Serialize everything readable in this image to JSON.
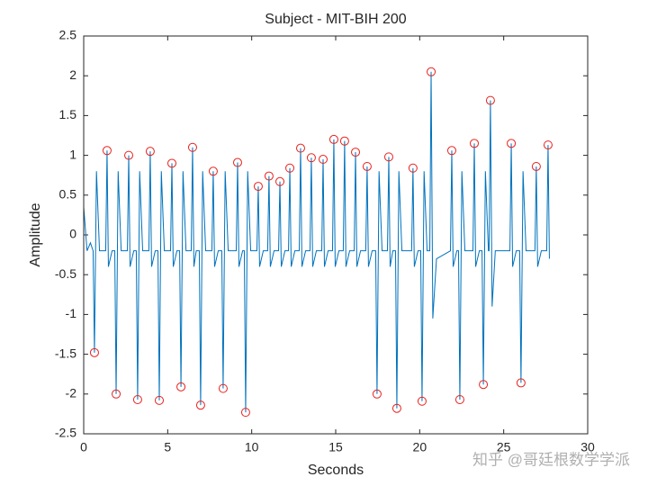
{
  "chart_data": {
    "type": "line",
    "title": "Subject - MIT-BIH 200",
    "xlabel": "Seconds",
    "ylabel": "Amplitude",
    "xlim": [
      0,
      30
    ],
    "xticks": [
      0,
      5,
      10,
      15,
      20,
      25,
      30
    ],
    "ylim": [
      -2.5,
      2.5
    ],
    "yticks": [
      -2.5,
      -2,
      -1.5,
      -1,
      -0.5,
      0,
      0.5,
      1,
      1.5,
      2,
      2.5
    ],
    "grid": false,
    "watermark": "知乎 @哥廷根数学学派",
    "series": [
      {
        "kind": "line",
        "color": "#0072bd",
        "x": [
          0,
          0.2,
          0.4,
          0.56,
          0.64,
          0.76,
          0.94,
          1.31,
          1.39,
          1.47,
          1.69,
          1.85,
          1.93,
          2.05,
          2.23,
          2.6,
          2.68,
          2.76,
          2.98,
          3.13,
          3.21,
          3.33,
          3.51,
          3.88,
          3.96,
          4.04,
          4.26,
          4.42,
          4.5,
          4.62,
          4.8,
          5.17,
          5.25,
          5.33,
          5.55,
          5.71,
          5.79,
          5.91,
          6.09,
          6.4,
          6.48,
          6.56,
          6.7,
          6.88,
          6.96,
          7.08,
          7.26,
          7.63,
          7.71,
          7.79,
          8.01,
          8.22,
          8.3,
          8.42,
          8.6,
          9.08,
          9.16,
          9.24,
          9.46,
          9.56,
          9.64,
          9.76,
          9.94,
          10.31,
          10.39,
          10.47,
          10.69,
          10.95,
          11.03,
          11.11,
          11.33,
          11.6,
          11.68,
          11.76,
          11.98,
          12.19,
          12.27,
          12.35,
          12.57,
          12.83,
          12.91,
          12.99,
          13.21,
          13.47,
          13.55,
          13.63,
          13.85,
          14.17,
          14.25,
          14.33,
          14.55,
          14.81,
          14.89,
          14.97,
          15.19,
          15.45,
          15.53,
          15.61,
          15.83,
          16.1,
          16.18,
          16.26,
          16.48,
          16.79,
          16.87,
          16.95,
          17.17,
          17.38,
          17.46,
          17.58,
          17.76,
          18.08,
          18.16,
          18.24,
          18.4,
          18.56,
          18.64,
          18.76,
          18.94,
          19.52,
          19.6,
          19.68,
          19.9,
          20.06,
          20.14,
          20.26,
          20.44,
          20.6,
          20.68,
          20.78,
          21.0,
          21.83,
          21.91,
          21.99,
          22.21,
          22.31,
          22.39,
          22.51,
          22.69,
          23.17,
          23.25,
          23.33,
          23.55,
          23.71,
          23.79,
          23.91,
          24.09,
          24.13,
          24.21,
          24.31,
          24.5,
          25.37,
          25.45,
          25.53,
          25.75,
          25.95,
          26.03,
          26.15,
          26.33,
          26.86,
          26.94,
          27.02,
          27.24,
          27.56,
          27.64,
          27.72
        ],
        "values": [
          0.35,
          -0.2,
          -0.1,
          -0.2,
          -1.48,
          0.8,
          -0.2,
          -0.2,
          1.06,
          -0.4,
          -0.2,
          -0.2,
          -2.0,
          0.8,
          -0.2,
          -0.2,
          1.0,
          -0.4,
          -0.2,
          -0.2,
          -2.07,
          0.8,
          -0.2,
          -0.2,
          1.05,
          -0.4,
          -0.2,
          -0.2,
          -2.08,
          0.8,
          -0.2,
          -0.2,
          0.9,
          -0.4,
          -0.2,
          -0.2,
          -1.91,
          0.8,
          -0.2,
          -0.2,
          1.1,
          -0.4,
          -0.2,
          -0.2,
          -2.14,
          0.8,
          -0.2,
          -0.2,
          0.8,
          -0.4,
          -0.2,
          -0.2,
          -1.93,
          0.8,
          -0.2,
          -0.2,
          0.91,
          -0.4,
          -0.2,
          -0.2,
          -2.23,
          0.8,
          -0.2,
          -0.2,
          0.61,
          -0.4,
          -0.2,
          -0.2,
          0.74,
          -0.4,
          -0.2,
          -0.2,
          0.67,
          -0.4,
          -0.2,
          -0.2,
          0.84,
          -0.4,
          -0.2,
          -0.2,
          1.09,
          -0.4,
          -0.2,
          -0.2,
          0.97,
          -0.4,
          -0.2,
          -0.2,
          0.95,
          -0.4,
          -0.2,
          -0.2,
          1.2,
          -0.4,
          -0.2,
          -0.2,
          1.18,
          -0.4,
          -0.2,
          -0.2,
          1.04,
          -0.4,
          -0.2,
          -0.2,
          0.86,
          -0.4,
          -0.2,
          -0.2,
          -2.0,
          0.8,
          -0.2,
          -0.2,
          0.98,
          -0.4,
          -0.2,
          -0.2,
          -2.18,
          0.8,
          -0.2,
          -0.2,
          0.84,
          -0.4,
          -0.2,
          -0.2,
          -2.09,
          0.8,
          -0.2,
          -0.2,
          2.05,
          -1.05,
          -0.3,
          -0.2,
          1.06,
          -0.4,
          -0.2,
          -0.2,
          -2.07,
          0.8,
          -0.2,
          -0.2,
          1.15,
          -0.4,
          -0.2,
          -0.2,
          -1.88,
          0.8,
          -0.2,
          -0.2,
          1.69,
          -0.9,
          -0.2,
          -0.2,
          1.15,
          -0.4,
          -0.2,
          -0.2,
          -1.86,
          0.8,
          -0.2,
          -0.2,
          0.86,
          -0.4,
          -0.2,
          -0.2,
          1.13,
          -0.3
        ]
      },
      {
        "kind": "scatter",
        "color": "#e8201c",
        "x": [
          0.64,
          1.39,
          1.93,
          2.68,
          3.21,
          3.96,
          4.5,
          5.25,
          5.79,
          6.48,
          6.96,
          7.71,
          8.3,
          9.16,
          9.64,
          10.39,
          11.03,
          11.68,
          12.27,
          12.91,
          13.55,
          14.25,
          14.89,
          15.53,
          16.18,
          16.87,
          17.46,
          18.16,
          18.64,
          19.6,
          20.14,
          20.68,
          21.91,
          22.39,
          23.25,
          23.79,
          24.21,
          25.45,
          26.03,
          26.94,
          27.64
        ],
        "values": [
          -1.48,
          1.06,
          -2.0,
          1.0,
          -2.07,
          1.05,
          -2.08,
          0.9,
          -1.91,
          1.1,
          -2.14,
          0.8,
          -1.93,
          0.91,
          -2.23,
          0.61,
          0.74,
          0.67,
          0.84,
          1.09,
          0.97,
          0.95,
          1.2,
          1.18,
          1.04,
          0.86,
          -2.0,
          0.98,
          -2.18,
          0.84,
          -2.09,
          2.05,
          1.06,
          -2.07,
          1.15,
          -1.88,
          1.69,
          1.15,
          -1.86,
          0.86,
          1.13
        ]
      }
    ]
  }
}
